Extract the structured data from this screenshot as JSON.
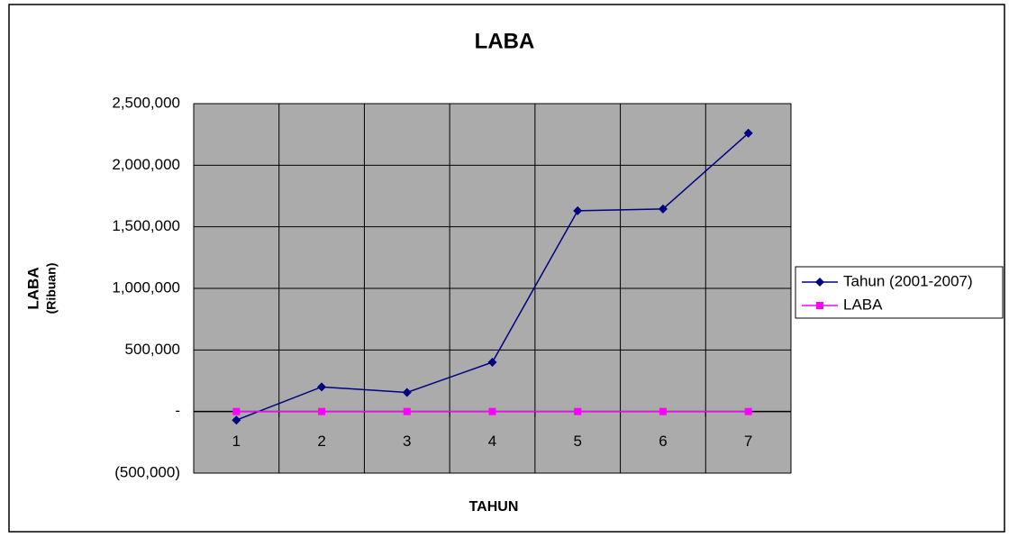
{
  "chart_data": {
    "type": "line",
    "title": "LABA",
    "xlabel": "TAHUN",
    "ylabel": "LABA",
    "ylabel_unit": "(Ribuan)",
    "categories": [
      "1",
      "2",
      "3",
      "4",
      "5",
      "6",
      "7"
    ],
    "series": [
      {
        "name": "Tahun (2001-2007)",
        "color": "#000080",
        "marker": "diamond",
        "values": [
          -70000,
          200000,
          155000,
          400000,
          1630000,
          1645000,
          2260000
        ]
      },
      {
        "name": "LABA",
        "color": "#ff00ff",
        "marker": "square",
        "values": [
          0,
          0,
          0,
          0,
          0,
          0,
          0
        ]
      }
    ],
    "ylim": [
      -500000,
      2500000
    ],
    "yticks": [
      {
        "value": -500000,
        "label": "(500,000)"
      },
      {
        "value": 0,
        "label": "-"
      },
      {
        "value": 500000,
        "label": "500,000"
      },
      {
        "value": 1000000,
        "label": "1,000,000"
      },
      {
        "value": 1500000,
        "label": "1,500,000"
      },
      {
        "value": 2000000,
        "label": "2,000,000"
      },
      {
        "value": 2500000,
        "label": "2,500,000"
      }
    ],
    "grid": true,
    "legend": "right"
  }
}
